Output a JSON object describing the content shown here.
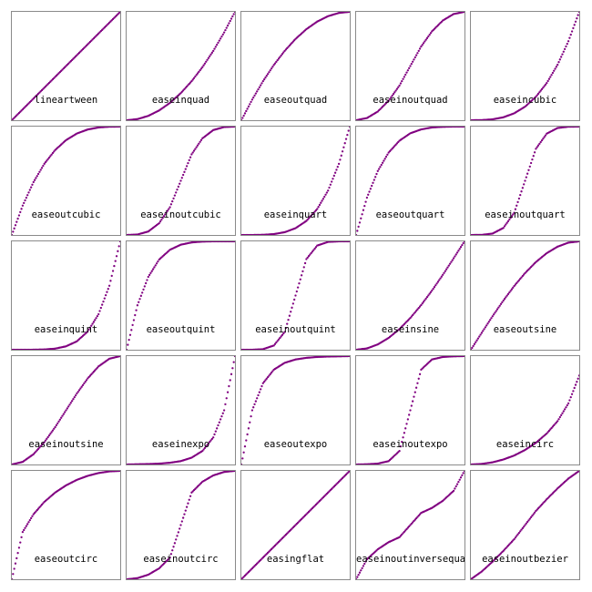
{
  "chart_data": {
    "type": "scatter",
    "layout": "5x5 grid of small multiples",
    "x_range": [
      0,
      1
    ],
    "y_range": [
      0,
      1
    ],
    "grid": false,
    "marker_color": "#800080",
    "panels": [
      {
        "label": "lineartween",
        "y": [
          0,
          0.1,
          0.2,
          0.3,
          0.4,
          0.5,
          0.6,
          0.7,
          0.8,
          0.9,
          1
        ]
      },
      {
        "label": "easeinquad",
        "y": [
          0,
          0.01,
          0.04,
          0.09,
          0.16,
          0.25,
          0.36,
          0.49,
          0.64,
          0.81,
          1
        ]
      },
      {
        "label": "easeoutquad",
        "y": [
          0,
          0.19,
          0.36,
          0.51,
          0.64,
          0.75,
          0.84,
          0.91,
          0.96,
          0.99,
          1
        ]
      },
      {
        "label": "easeinoutquad",
        "y": [
          0,
          0.02,
          0.08,
          0.18,
          0.32,
          0.5,
          0.68,
          0.82,
          0.92,
          0.98,
          1
        ]
      },
      {
        "label": "easeincubic",
        "y": [
          0,
          0.001,
          0.008,
          0.027,
          0.064,
          0.125,
          0.216,
          0.343,
          0.512,
          0.729,
          1
        ]
      },
      {
        "label": "easeoutcubic",
        "y": [
          0,
          0.271,
          0.488,
          0.657,
          0.784,
          0.875,
          0.936,
          0.973,
          0.992,
          0.999,
          1
        ]
      },
      {
        "label": "easeinoutcubic",
        "y": [
          0,
          0.004,
          0.032,
          0.108,
          0.256,
          0.5,
          0.744,
          0.892,
          0.968,
          0.996,
          1
        ]
      },
      {
        "label": "easeinquart",
        "y": [
          0,
          0.0001,
          0.0016,
          0.0081,
          0.0256,
          0.0625,
          0.1296,
          0.2401,
          0.4096,
          0.6561,
          1
        ]
      },
      {
        "label": "easeoutquart",
        "y": [
          0,
          0.344,
          0.59,
          0.76,
          0.87,
          0.938,
          0.974,
          0.992,
          0.998,
          1,
          1
        ]
      },
      {
        "label": "easeinoutquart",
        "y": [
          0,
          0.001,
          0.013,
          0.065,
          0.205,
          0.5,
          0.795,
          0.935,
          0.987,
          0.999,
          1
        ]
      },
      {
        "label": "easeinquint",
        "y": [
          0,
          1e-05,
          0.0003,
          0.0024,
          0.0102,
          0.0313,
          0.0778,
          0.1681,
          0.3277,
          0.5905,
          1
        ]
      },
      {
        "label": "easeoutquint",
        "y": [
          0,
          0.41,
          0.672,
          0.832,
          0.922,
          0.969,
          0.99,
          0.998,
          1,
          1,
          1
        ]
      },
      {
        "label": "easeinoutquint",
        "y": [
          0,
          0.0002,
          0.005,
          0.039,
          0.164,
          0.5,
          0.836,
          0.961,
          0.995,
          1,
          1
        ]
      },
      {
        "label": "easeinsine",
        "y": [
          0,
          0.012,
          0.049,
          0.109,
          0.191,
          0.293,
          0.412,
          0.546,
          0.691,
          0.844,
          1
        ]
      },
      {
        "label": "easeoutsine",
        "y": [
          0,
          0.156,
          0.309,
          0.454,
          0.588,
          0.707,
          0.809,
          0.891,
          0.951,
          0.988,
          1
        ]
      },
      {
        "label": "easeinoutsine",
        "y": [
          0,
          0.024,
          0.095,
          0.206,
          0.345,
          0.5,
          0.655,
          0.794,
          0.905,
          0.976,
          1
        ]
      },
      {
        "label": "easeinexpo",
        "y": [
          0,
          0.002,
          0.004,
          0.008,
          0.016,
          0.031,
          0.063,
          0.125,
          0.25,
          0.5,
          1
        ]
      },
      {
        "label": "easeoutexpo",
        "y": [
          0,
          0.5,
          0.75,
          0.875,
          0.938,
          0.969,
          0.984,
          0.992,
          0.996,
          0.998,
          1
        ]
      },
      {
        "label": "easeinoutexpo",
        "y": [
          0,
          0.002,
          0.008,
          0.031,
          0.125,
          0.5,
          0.875,
          0.969,
          0.992,
          0.998,
          1
        ]
      },
      {
        "label": "easeincirc",
        "y": [
          0,
          0.005,
          0.02,
          0.046,
          0.083,
          0.134,
          0.2,
          0.286,
          0.4,
          0.564,
          0.82
        ]
      },
      {
        "label": "easeoutcirc",
        "y": [
          0,
          0.436,
          0.6,
          0.714,
          0.8,
          0.866,
          0.917,
          0.954,
          0.98,
          0.995,
          1
        ]
      },
      {
        "label": "easeinoutcirc",
        "y": [
          0,
          0.01,
          0.042,
          0.1,
          0.2,
          0.5,
          0.8,
          0.9,
          0.958,
          0.99,
          1
        ]
      },
      {
        "label": "easingflat",
        "y": [
          0,
          0.1,
          0.2,
          0.3,
          0.4,
          0.5,
          0.6,
          0.7,
          0.8,
          0.9,
          1
        ]
      },
      {
        "label": "easeinoutinversequad",
        "y": [
          0,
          0.184,
          0.276,
          0.342,
          0.388,
          0.5,
          0.612,
          0.658,
          0.724,
          0.816,
          1
        ]
      },
      {
        "label": "easeinoutbezier",
        "y": [
          0,
          0.071,
          0.162,
          0.262,
          0.37,
          0.5,
          0.63,
          0.738,
          0.838,
          0.929,
          1
        ]
      }
    ]
  }
}
